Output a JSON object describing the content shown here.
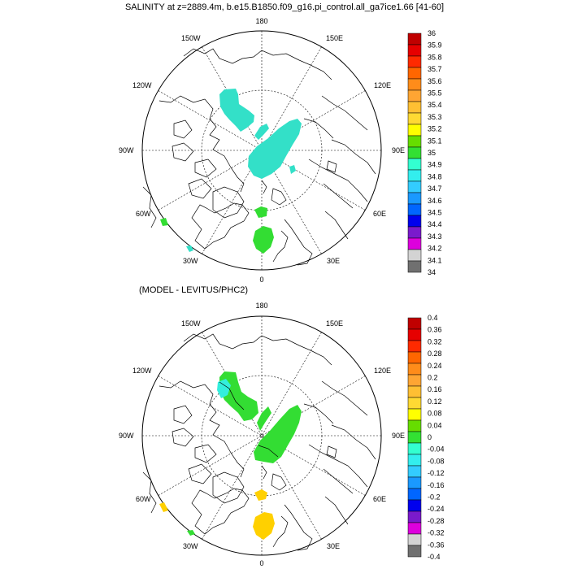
{
  "title": "SALINITY at z=2889.4m, b.e15.B1850.f09_g16.pi_control.all_ga7ice1.66 [41-60]",
  "subtitle": "(MODEL - LEVITUS/PHC2)",
  "longitude_labels": {
    "top": "180",
    "bottom": "0",
    "left": "90W",
    "right": "90E",
    "nw150": "150W",
    "ne150": "150E",
    "nw120": "120W",
    "ne120": "120E",
    "sw60": "60W",
    "se60": "60E",
    "sw30": "30W",
    "se30": "30E"
  },
  "colorbar_top": {
    "labels": [
      "36",
      "35.9",
      "35.8",
      "35.7",
      "35.6",
      "35.5",
      "35.4",
      "35.3",
      "35.2",
      "35.1",
      "35",
      "34.9",
      "34.8",
      "34.7",
      "34.6",
      "34.5",
      "34.4",
      "34.3",
      "34.2",
      "34.1",
      "34"
    ],
    "colors": [
      "#c00000",
      "#e60000",
      "#ff2a00",
      "#ff6600",
      "#ff8c1a",
      "#ffa533",
      "#ffbf33",
      "#ffd933",
      "#ffff00",
      "#66dd00",
      "#33e033",
      "#33ffd0",
      "#33eeee",
      "#33ccff",
      "#1a99ff",
      "#0066ff",
      "#0000ee",
      "#7a1acc",
      "#dd00dd",
      "#d3d3d3",
      "#707070"
    ]
  },
  "colorbar_bottom": {
    "labels": [
      "0.4",
      "0.36",
      "0.32",
      "0.28",
      "0.24",
      "0.2",
      "0.16",
      "0.12",
      "0.08",
      "0.04",
      "0",
      "-0.04",
      "-0.08",
      "-0.12",
      "-0.16",
      "-0.2",
      "-0.24",
      "-0.28",
      "-0.32",
      "-0.36",
      "-0.4"
    ],
    "colors": [
      "#c00000",
      "#e60000",
      "#ff2a00",
      "#ff6600",
      "#ff8c1a",
      "#ffa533",
      "#ffbf33",
      "#ffd933",
      "#ffff00",
      "#66dd00",
      "#33e033",
      "#33ffd0",
      "#33eeee",
      "#33ccff",
      "#1a99ff",
      "#0066ff",
      "#0000ee",
      "#7a1acc",
      "#dd00dd",
      "#d3d3d3",
      "#707070"
    ]
  },
  "field_colors": {
    "top_main": "#33e0c8",
    "top_green": "#33dd33",
    "bottom_green": "#33dd33",
    "bottom_cyan": "#33eedd",
    "bottom_yellow": "#ffd000"
  }
}
